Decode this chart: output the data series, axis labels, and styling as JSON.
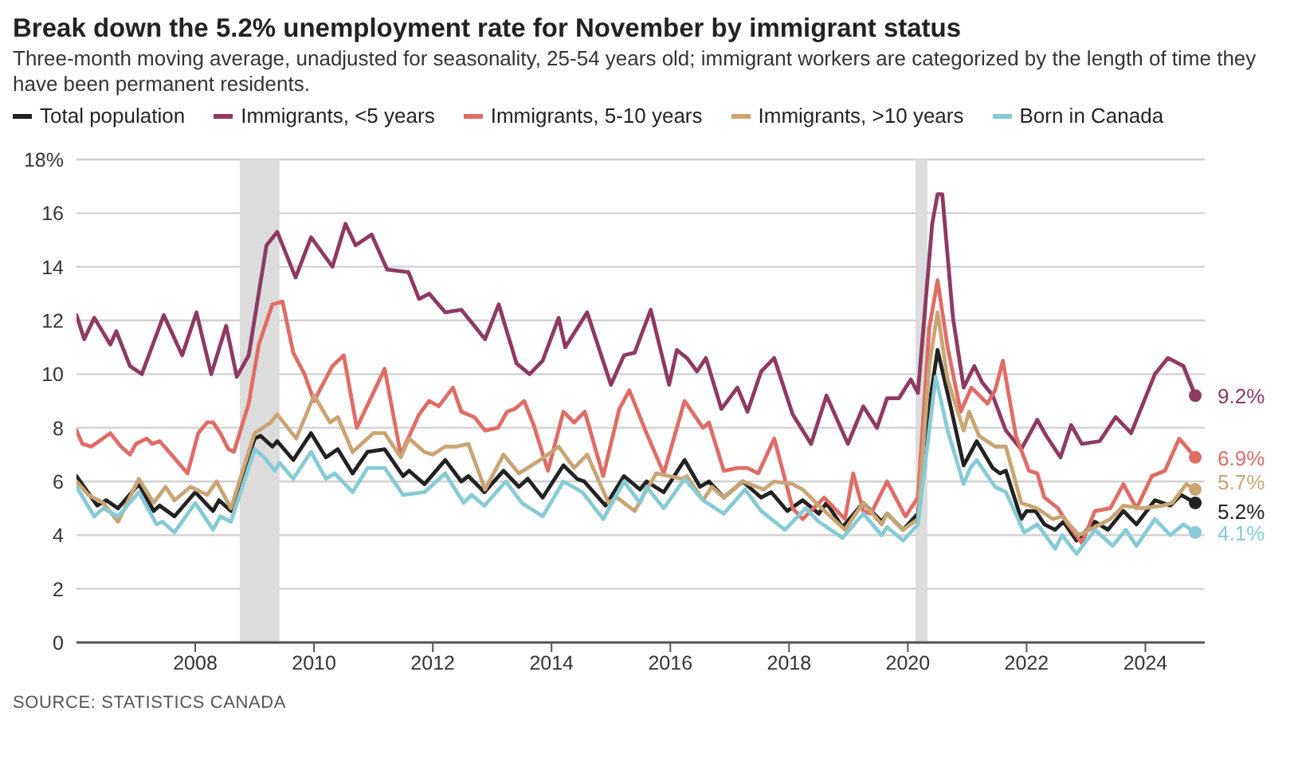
{
  "chart_data": {
    "type": "line",
    "title": "Break down the 5.2% unemployment rate for November by immigrant status",
    "subtitle": "Three-month moving average, unadjusted for seasonality, 25-54 years old; immigrant workers are categorized by the length of time they have been permanent residents.",
    "annotations": [
      "SOURCE: STATISTICS CANADA"
    ],
    "xlim": [
      2006,
      2025
    ],
    "xticks": [
      2008,
      2010,
      2012,
      2014,
      2016,
      2018,
      2020,
      2022,
      2024
    ],
    "ylim": [
      0,
      18
    ],
    "yticks": [
      0,
      2,
      4,
      6,
      8,
      10,
      12,
      14,
      16,
      {
        "value": 18,
        "label": "18%"
      }
    ],
    "grid": "y",
    "legend": "top left",
    "line_style": "solid",
    "bands": [
      {
        "axis": "x",
        "from": 2008.75,
        "to": 2009.42,
        "color": "#dcdcdc"
      },
      {
        "axis": "x",
        "from": 2020.13,
        "to": 2020.33,
        "color": "#dcdcdc"
      }
    ],
    "series": [
      {
        "name": "Total population",
        "color": "#222222",
        "x": [
          2006.0,
          2006.35,
          2006.5,
          2006.7,
          2007.05,
          2007.3,
          2007.4,
          2007.65,
          2008.0,
          2008.3,
          2008.4,
          2008.6,
          2009.0,
          2009.1,
          2009.3,
          2009.38,
          2009.65,
          2009.95,
          2010.2,
          2010.4,
          2010.65,
          2010.9,
          2011.19,
          2011.5,
          2011.6,
          2011.86,
          2012.21,
          2012.48,
          2012.6,
          2012.87,
          2013.19,
          2013.45,
          2013.6,
          2013.85,
          2014.2,
          2014.43,
          2014.55,
          2014.91,
          2015.22,
          2015.49,
          2015.6,
          2015.89,
          2016.24,
          2016.5,
          2016.65,
          2016.9,
          2017.22,
          2017.53,
          2017.7,
          2017.97,
          2018.23,
          2018.5,
          2018.63,
          2018.9,
          2019.25,
          2019.56,
          2019.65,
          2019.92,
          2020.17,
          2020.36,
          2020.5,
          2020.72,
          2020.94,
          2021.16,
          2021.43,
          2021.55,
          2021.65,
          2021.91,
          2022.0,
          2022.15,
          2022.3,
          2022.48,
          2022.62,
          2022.84,
          2023.15,
          2023.37,
          2023.63,
          2023.85,
          2024.16,
          2024.42,
          2024.6,
          2024.84
        ],
        "values": [
          6.2,
          5.1,
          5.3,
          5.0,
          5.9,
          4.9,
          5.1,
          4.7,
          5.6,
          4.9,
          5.3,
          4.9,
          7.6,
          7.7,
          7.3,
          7.5,
          6.8,
          7.8,
          6.9,
          7.2,
          6.3,
          7.1,
          7.2,
          6.2,
          6.4,
          5.9,
          6.8,
          6.0,
          6.2,
          5.6,
          6.4,
          5.8,
          6.1,
          5.4,
          6.6,
          6.1,
          6.0,
          5.1,
          6.2,
          5.7,
          6.0,
          5.6,
          6.8,
          5.8,
          6.0,
          5.4,
          6.0,
          5.4,
          5.6,
          4.9,
          5.3,
          4.8,
          5.2,
          4.3,
          5.2,
          4.5,
          4.8,
          4.2,
          4.8,
          8.8,
          10.9,
          8.8,
          6.6,
          7.5,
          6.5,
          6.3,
          6.4,
          4.6,
          4.9,
          4.9,
          4.4,
          4.2,
          4.5,
          3.8,
          4.5,
          4.2,
          4.9,
          4.4,
          5.3,
          5.1,
          5.5,
          5.2
        ],
        "value_labels": [
          null,
          null,
          null,
          null,
          null,
          null,
          null,
          null,
          null,
          null,
          null,
          null,
          null,
          null,
          null,
          null,
          null,
          null,
          null,
          null,
          null,
          null,
          null,
          null,
          null,
          null,
          null,
          null,
          null,
          null,
          null,
          null,
          null,
          null,
          null,
          null,
          null,
          null,
          null,
          null,
          null,
          null,
          null,
          null,
          null,
          null,
          null,
          null,
          null,
          null,
          null,
          null,
          null,
          null,
          null,
          null,
          null,
          null,
          null,
          null,
          null,
          null,
          null,
          null,
          null,
          null,
          null,
          null,
          null,
          null,
          null,
          null,
          null,
          null,
          null,
          null,
          null,
          null,
          null,
          null,
          null,
          "5.2%"
        ]
      },
      {
        "name": "Immigrants, <5 years",
        "color": "#8e3a63",
        "x": [
          2006.0,
          2006.13,
          2006.3,
          2006.57,
          2006.67,
          2006.9,
          2007.1,
          2007.47,
          2007.78,
          2008.02,
          2008.27,
          2008.52,
          2008.7,
          2008.9,
          2009.2,
          2009.38,
          2009.69,
          2009.95,
          2010.31,
          2010.53,
          2010.7,
          2010.97,
          2011.23,
          2011.59,
          2011.77,
          2011.94,
          2012.21,
          2012.48,
          2012.88,
          2013.11,
          2013.41,
          2013.63,
          2013.85,
          2014.12,
          2014.23,
          2014.6,
          2015.0,
          2015.22,
          2015.4,
          2015.67,
          2015.98,
          2016.11,
          2016.28,
          2016.45,
          2016.6,
          2016.86,
          2017.13,
          2017.3,
          2017.53,
          2017.75,
          2018.06,
          2018.37,
          2018.63,
          2018.99,
          2019.25,
          2019.48,
          2019.65,
          2019.85,
          2020.05,
          2020.17,
          2020.41,
          2020.5,
          2020.58,
          2020.76,
          2020.94,
          2021.12,
          2021.25,
          2021.43,
          2021.65,
          2021.91,
          2022.18,
          2022.33,
          2022.57,
          2022.75,
          2022.93,
          2023.23,
          2023.5,
          2023.76,
          2024.16,
          2024.38,
          2024.64,
          2024.84
        ],
        "values": [
          12.2,
          11.3,
          12.1,
          11.1,
          11.6,
          10.3,
          10.0,
          12.2,
          10.7,
          12.3,
          10.0,
          11.8,
          9.9,
          10.7,
          14.8,
          15.3,
          13.6,
          15.1,
          14.0,
          15.6,
          14.8,
          15.2,
          13.9,
          13.8,
          12.8,
          13.0,
          12.3,
          12.4,
          11.3,
          12.6,
          10.4,
          10.0,
          10.5,
          12.1,
          11.0,
          12.3,
          9.6,
          10.7,
          10.8,
          12.4,
          9.6,
          10.9,
          10.6,
          10.1,
          10.6,
          8.7,
          9.5,
          8.6,
          10.1,
          10.6,
          8.5,
          7.4,
          9.2,
          7.4,
          8.8,
          8.0,
          9.1,
          9.1,
          9.8,
          9.3,
          15.6,
          16.7,
          16.7,
          12.1,
          9.5,
          10.3,
          9.7,
          9.2,
          7.9,
          7.2,
          8.3,
          7.7,
          6.9,
          8.1,
          7.4,
          7.5,
          8.4,
          7.8,
          10.0,
          10.6,
          10.3,
          9.2
        ],
        "value_labels": [
          null,
          null,
          null,
          null,
          null,
          null,
          null,
          null,
          null,
          null,
          null,
          null,
          null,
          null,
          null,
          null,
          null,
          null,
          null,
          null,
          null,
          null,
          null,
          null,
          null,
          null,
          null,
          null,
          null,
          null,
          null,
          null,
          null,
          null,
          null,
          null,
          null,
          null,
          null,
          null,
          null,
          null,
          null,
          null,
          null,
          null,
          null,
          null,
          null,
          null,
          null,
          null,
          null,
          null,
          null,
          null,
          null,
          null,
          null,
          null,
          null,
          null,
          null,
          null,
          null,
          null,
          null,
          null,
          null,
          null,
          null,
          null,
          null,
          null,
          null,
          null,
          null,
          null,
          null,
          null,
          null,
          "9.2%"
        ]
      },
      {
        "name": "Immigrants, 5-10 years",
        "color": "#e06c66",
        "x": [
          2006.0,
          2006.1,
          2006.25,
          2006.57,
          2006.75,
          2006.9,
          2007.0,
          2007.18,
          2007.28,
          2007.4,
          2007.6,
          2007.87,
          2008.05,
          2008.2,
          2008.3,
          2008.42,
          2008.56,
          2008.65,
          2008.9,
          2009.07,
          2009.3,
          2009.47,
          2009.65,
          2009.84,
          2010.0,
          2010.31,
          2010.5,
          2010.72,
          2011.19,
          2011.46,
          2011.77,
          2011.94,
          2012.1,
          2012.34,
          2012.48,
          2012.7,
          2012.88,
          2013.1,
          2013.25,
          2013.38,
          2013.54,
          2013.7,
          2013.94,
          2014.2,
          2014.38,
          2014.56,
          2014.87,
          2015.14,
          2015.31,
          2015.58,
          2015.89,
          2016.24,
          2016.55,
          2016.65,
          2016.9,
          2017.13,
          2017.3,
          2017.48,
          2017.75,
          2018.06,
          2018.23,
          2018.59,
          2018.94,
          2019.08,
          2019.25,
          2019.38,
          2019.65,
          2019.96,
          2020.17,
          2020.36,
          2020.5,
          2020.67,
          2020.89,
          2021.07,
          2021.34,
          2021.47,
          2021.6,
          2021.82,
          2022.04,
          2022.18,
          2022.3,
          2022.53,
          2022.7,
          2022.93,
          2023.15,
          2023.41,
          2023.63,
          2023.85,
          2024.11,
          2024.33,
          2024.57,
          2024.84
        ],
        "values": [
          7.9,
          7.4,
          7.3,
          7.8,
          7.3,
          7.0,
          7.4,
          7.6,
          7.4,
          7.5,
          7.0,
          6.3,
          7.8,
          8.2,
          8.2,
          7.8,
          7.2,
          7.1,
          8.9,
          11.1,
          12.6,
          12.7,
          10.8,
          10.0,
          9.0,
          10.3,
          10.7,
          8.0,
          10.2,
          7.0,
          8.5,
          9.0,
          8.8,
          9.5,
          8.6,
          8.4,
          7.9,
          8.0,
          8.6,
          8.7,
          9.0,
          8.1,
          6.4,
          8.6,
          8.2,
          8.6,
          6.2,
          8.7,
          9.4,
          7.9,
          6.3,
          9.0,
          8.0,
          8.2,
          6.4,
          6.5,
          6.5,
          6.3,
          7.6,
          5.0,
          4.6,
          5.4,
          4.6,
          6.3,
          4.9,
          4.8,
          6.0,
          4.7,
          5.4,
          11.7,
          13.5,
          11.0,
          8.6,
          9.5,
          8.9,
          9.4,
          10.5,
          7.7,
          6.4,
          6.3,
          5.4,
          5.0,
          4.4,
          3.7,
          4.9,
          5.0,
          5.9,
          5.0,
          6.2,
          6.4,
          7.6,
          6.9
        ],
        "value_labels": [
          null,
          null,
          null,
          null,
          null,
          null,
          null,
          null,
          null,
          null,
          null,
          null,
          null,
          null,
          null,
          null,
          null,
          null,
          null,
          null,
          null,
          null,
          null,
          null,
          null,
          null,
          null,
          null,
          null,
          null,
          null,
          null,
          null,
          null,
          null,
          null,
          null,
          null,
          null,
          null,
          null,
          null,
          null,
          null,
          null,
          null,
          null,
          null,
          null,
          null,
          null,
          null,
          null,
          null,
          null,
          null,
          null,
          null,
          null,
          null,
          null,
          null,
          null,
          null,
          null,
          null,
          null,
          null,
          null,
          null,
          null,
          null,
          null,
          null,
          null,
          null,
          null,
          null,
          null,
          null,
          null,
          null,
          null,
          null,
          null,
          null,
          null,
          null,
          null,
          null,
          null,
          "6.9%"
        ]
      },
      {
        "name": "Immigrants, >10 years",
        "color": "#c9a574",
        "x": [
          2006.0,
          2006.2,
          2006.45,
          2006.7,
          2007.05,
          2007.3,
          2007.5,
          2007.65,
          2007.92,
          2008.2,
          2008.36,
          2008.6,
          2009.0,
          2009.27,
          2009.38,
          2009.7,
          2010.0,
          2010.27,
          2010.4,
          2010.65,
          2011.0,
          2011.19,
          2011.46,
          2011.6,
          2011.86,
          2012.0,
          2012.21,
          2012.4,
          2012.6,
          2012.88,
          2013.19,
          2013.45,
          2013.81,
          2014.12,
          2014.38,
          2014.6,
          2014.96,
          2015.1,
          2015.4,
          2015.76,
          2016.2,
          2016.28,
          2016.55,
          2016.7,
          2016.9,
          2017.22,
          2017.57,
          2017.75,
          2018.06,
          2018.23,
          2018.5,
          2018.94,
          2019.25,
          2019.56,
          2019.65,
          2019.92,
          2020.17,
          2020.36,
          2020.5,
          2020.67,
          2020.94,
          2021.03,
          2021.2,
          2021.47,
          2021.65,
          2021.91,
          2022.18,
          2022.44,
          2022.6,
          2022.88,
          2023.15,
          2023.41,
          2023.63,
          2023.94,
          2024.29,
          2024.45,
          2024.69,
          2024.84
        ],
        "values": [
          6.0,
          5.5,
          5.2,
          4.5,
          6.1,
          5.2,
          5.8,
          5.3,
          5.8,
          5.5,
          6.0,
          5.0,
          7.8,
          8.2,
          8.5,
          7.6,
          9.2,
          8.2,
          8.4,
          7.1,
          7.8,
          7.8,
          6.9,
          7.6,
          7.1,
          7.0,
          7.3,
          7.3,
          7.4,
          5.7,
          7.0,
          6.3,
          6.8,
          7.3,
          6.5,
          7.0,
          5.2,
          5.4,
          4.9,
          6.3,
          6.1,
          6.2,
          5.3,
          5.8,
          5.4,
          6.0,
          5.7,
          6.0,
          5.9,
          5.7,
          5.1,
          4.2,
          5.2,
          4.4,
          4.8,
          4.2,
          4.6,
          10.3,
          12.3,
          9.8,
          7.9,
          8.6,
          7.7,
          7.3,
          7.3,
          5.2,
          5.0,
          4.6,
          4.7,
          4.0,
          4.3,
          4.6,
          5.1,
          5.0,
          5.1,
          5.2,
          5.9,
          5.7
        ],
        "value_labels": [
          null,
          null,
          null,
          null,
          null,
          null,
          null,
          null,
          null,
          null,
          null,
          null,
          null,
          null,
          null,
          null,
          null,
          null,
          null,
          null,
          null,
          null,
          null,
          null,
          null,
          null,
          null,
          null,
          null,
          null,
          null,
          null,
          null,
          null,
          null,
          null,
          null,
          null,
          null,
          null,
          null,
          null,
          null,
          null,
          null,
          null,
          null,
          null,
          null,
          null,
          null,
          null,
          null,
          null,
          null,
          null,
          null,
          null,
          null,
          null,
          null,
          null,
          null,
          null,
          null,
          null,
          null,
          null,
          null,
          null,
          null,
          null,
          null,
          null,
          null,
          null,
          null,
          "5.7%"
        ]
      },
      {
        "name": "Born in Canada",
        "color": "#86cbd6",
        "x": [
          2006.0,
          2006.3,
          2006.45,
          2006.7,
          2007.05,
          2007.35,
          2007.45,
          2007.65,
          2008.0,
          2008.3,
          2008.42,
          2008.6,
          2009.0,
          2009.16,
          2009.34,
          2009.42,
          2009.65,
          2009.95,
          2010.2,
          2010.35,
          2010.65,
          2010.9,
          2011.19,
          2011.5,
          2011.86,
          2012.21,
          2012.52,
          2012.65,
          2012.87,
          2013.23,
          2013.5,
          2013.85,
          2014.2,
          2014.52,
          2014.87,
          2015.22,
          2015.49,
          2015.6,
          2015.89,
          2016.24,
          2016.55,
          2016.9,
          2017.26,
          2017.53,
          2017.93,
          2018.28,
          2018.5,
          2018.9,
          2019.25,
          2019.56,
          2019.65,
          2019.92,
          2020.17,
          2020.36,
          2020.47,
          2020.67,
          2020.94,
          2021.05,
          2021.16,
          2021.47,
          2021.65,
          2021.96,
          2022.18,
          2022.48,
          2022.6,
          2022.84,
          2023.15,
          2023.45,
          2023.67,
          2023.85,
          2024.16,
          2024.42,
          2024.64,
          2024.84
        ],
        "values": [
          5.8,
          4.7,
          5.0,
          4.7,
          5.6,
          4.4,
          4.5,
          4.1,
          5.2,
          4.2,
          4.7,
          4.5,
          7.2,
          6.9,
          6.4,
          6.7,
          6.1,
          7.1,
          6.1,
          6.3,
          5.6,
          6.5,
          6.5,
          5.5,
          5.6,
          6.3,
          5.2,
          5.5,
          5.1,
          6.0,
          5.2,
          4.7,
          6.0,
          5.6,
          4.6,
          6.0,
          5.2,
          5.8,
          5.0,
          6.1,
          5.3,
          4.8,
          5.7,
          4.9,
          4.2,
          5.0,
          4.5,
          3.9,
          4.8,
          4.0,
          4.3,
          3.8,
          4.4,
          7.9,
          9.9,
          7.9,
          5.9,
          6.5,
          6.8,
          5.8,
          5.6,
          4.1,
          4.4,
          3.5,
          4.0,
          3.3,
          4.2,
          3.6,
          4.2,
          3.6,
          4.6,
          4.0,
          4.4,
          4.1
        ],
        "value_labels": [
          null,
          null,
          null,
          null,
          null,
          null,
          null,
          null,
          null,
          null,
          null,
          null,
          null,
          null,
          null,
          null,
          null,
          null,
          null,
          null,
          null,
          null,
          null,
          null,
          null,
          null,
          null,
          null,
          null,
          null,
          null,
          null,
          null,
          null,
          null,
          null,
          null,
          null,
          null,
          null,
          null,
          null,
          null,
          null,
          null,
          null,
          null,
          null,
          null,
          null,
          null,
          null,
          null,
          null,
          null,
          null,
          null,
          null,
          null,
          null,
          null,
          null,
          null,
          null,
          null,
          null,
          null,
          null,
          null,
          null,
          null,
          null,
          null,
          "4.1%"
        ]
      }
    ]
  }
}
